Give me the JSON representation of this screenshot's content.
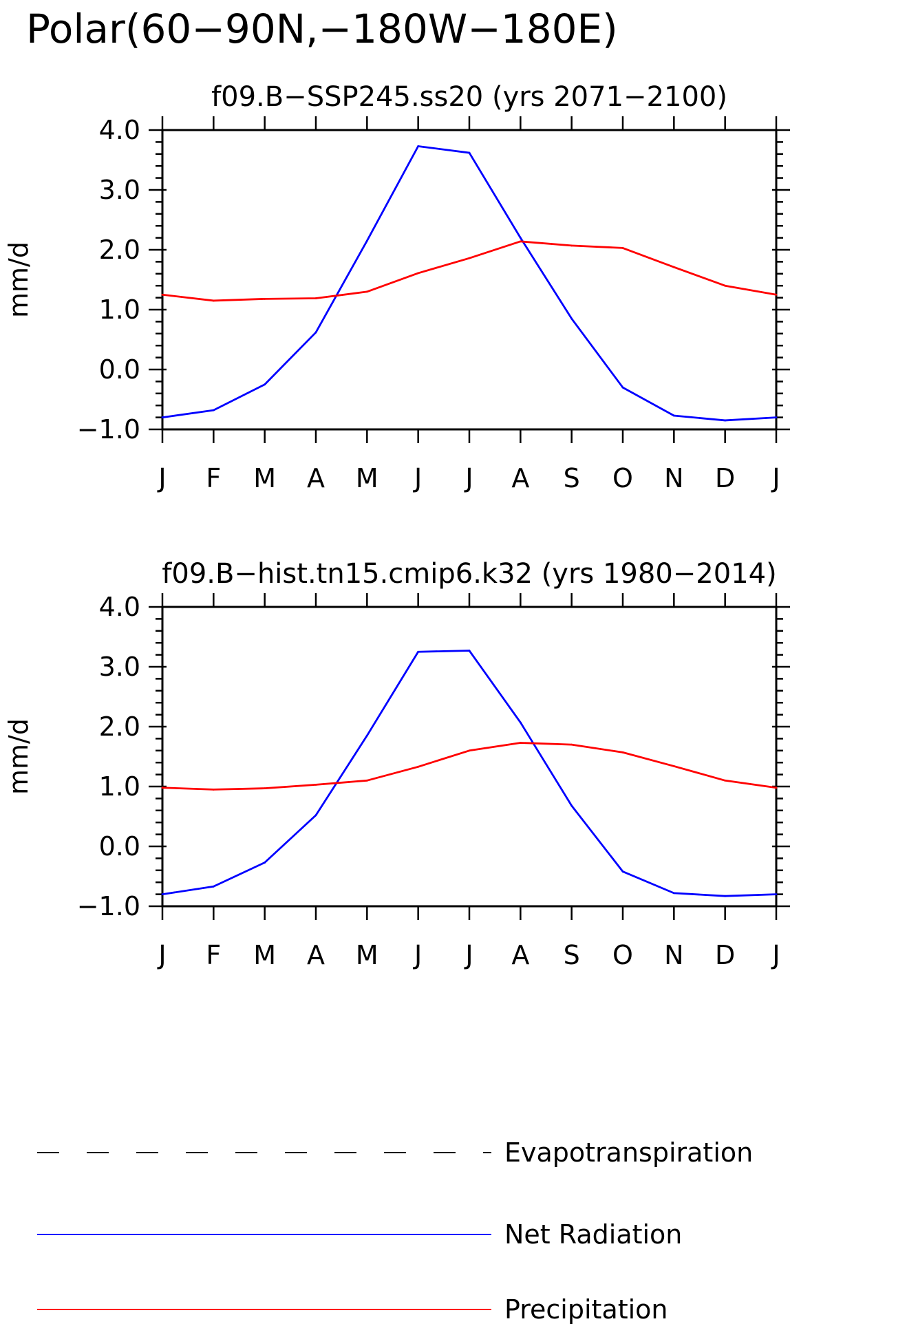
{
  "figure_title": "Polar(60−90N,−180W−180E)",
  "chart_data": [
    {
      "type": "line",
      "title": "f09.B−SSP245.ss20 (yrs 2071−2100)",
      "ylabel": "mm/d",
      "xlabel": "",
      "ylim": [
        -1.0,
        4.0
      ],
      "yticks": [
        "4.0",
        "3.0",
        "2.0",
        "1.0",
        "0.0",
        "−1.0"
      ],
      "ytick_values": [
        4.0,
        3.0,
        2.0,
        1.0,
        0.0,
        -1.0
      ],
      "categories": [
        "J",
        "F",
        "M",
        "A",
        "M",
        "J",
        "J",
        "A",
        "S",
        "O",
        "N",
        "D",
        "J"
      ],
      "series": [
        {
          "name": "Net Radiation",
          "color": "#0000ff",
          "values": [
            -0.8,
            -0.68,
            -0.25,
            0.62,
            2.15,
            3.73,
            3.62,
            2.2,
            0.85,
            -0.3,
            -0.77,
            -0.85,
            -0.8
          ]
        },
        {
          "name": "Precipitation",
          "color": "#ff0000",
          "values": [
            1.25,
            1.15,
            1.18,
            1.19,
            1.3,
            1.61,
            1.86,
            2.14,
            2.07,
            2.03,
            1.71,
            1.4,
            1.25
          ]
        }
      ]
    },
    {
      "type": "line",
      "title": "f09.B−hist.tn15.cmip6.k32 (yrs 1980−2014)",
      "ylabel": "mm/d",
      "xlabel": "",
      "ylim": [
        -1.0,
        4.0
      ],
      "yticks": [
        "4.0",
        "3.0",
        "2.0",
        "1.0",
        "0.0",
        "−1.0"
      ],
      "ytick_values": [
        4.0,
        3.0,
        2.0,
        1.0,
        0.0,
        -1.0
      ],
      "categories": [
        "J",
        "F",
        "M",
        "A",
        "M",
        "J",
        "J",
        "A",
        "S",
        "O",
        "N",
        "D",
        "J"
      ],
      "series": [
        {
          "name": "Net Radiation",
          "color": "#0000ff",
          "values": [
            -0.8,
            -0.67,
            -0.27,
            0.52,
            1.85,
            3.25,
            3.27,
            2.07,
            0.68,
            -0.42,
            -0.78,
            -0.83,
            -0.8
          ]
        },
        {
          "name": "Precipitation",
          "color": "#ff0000",
          "values": [
            0.98,
            0.95,
            0.97,
            1.03,
            1.1,
            1.33,
            1.6,
            1.73,
            1.7,
            1.57,
            1.34,
            1.1,
            0.98
          ]
        }
      ]
    }
  ],
  "legend": [
    {
      "label": "Evapotranspiration",
      "color": "#000000",
      "style": "dashed"
    },
    {
      "label": "Net Radiation",
      "color": "#0000ff",
      "style": "solid"
    },
    {
      "label": "Precipitation",
      "color": "#ff0000",
      "style": "solid"
    }
  ]
}
